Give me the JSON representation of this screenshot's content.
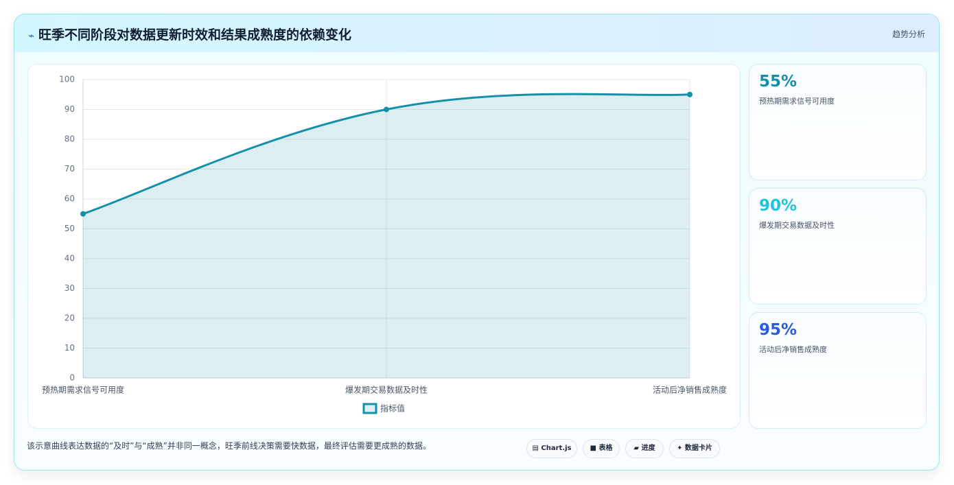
{
  "header": {
    "icon": "⌁",
    "title": "旺季不同阶段对数据更新时效和结果成熟度的依赖变化",
    "tag": "趋势分析"
  },
  "chart_data": {
    "type": "line",
    "categories": [
      "预热期需求信号可用度",
      "爆发期交易数据及时性",
      "活动后净销售成熟度"
    ],
    "series": [
      {
        "name": "指标值",
        "color": "#1590a9",
        "values": [
          55,
          90,
          95
        ]
      }
    ],
    "ylim": [
      0,
      100
    ],
    "yticks": [
      0,
      10,
      20,
      30,
      40,
      50,
      60,
      70,
      80,
      90,
      100
    ],
    "grid": true,
    "fill": true,
    "legend": "bottom"
  },
  "cards": [
    {
      "value": "55%",
      "label": "预热期需求信号可用度",
      "color": "#138fa8"
    },
    {
      "value": "90%",
      "label": "爆发期交易数据及时性",
      "color": "#22c5d8"
    },
    {
      "value": "95%",
      "label": "活动后净销售成熟度",
      "color": "#2a5bd8"
    }
  ],
  "footer": {
    "note": "该示意曲线表达数据的“及时”与“成熟”并非同一概念，旺季前线决策需要快数据，最终评估需要更成熟的数据。",
    "buttons": [
      "▤ Chart.js",
      "■ 表格",
      "▰ 进度",
      "✦ 数据卡片"
    ]
  }
}
